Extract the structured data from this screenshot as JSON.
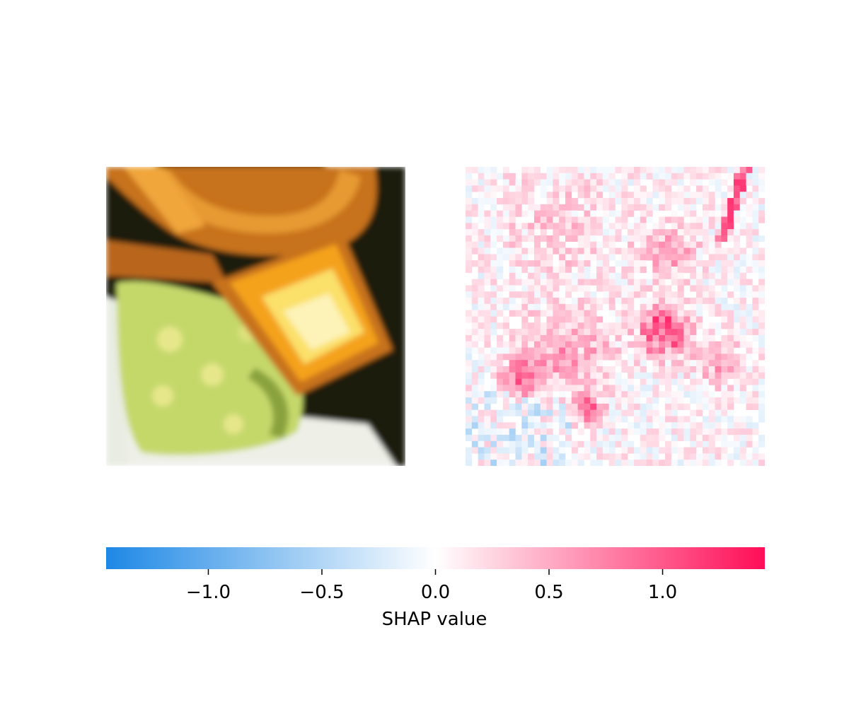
{
  "chart_data": {
    "type": "heatmap",
    "panels": [
      {
        "name": "input-image",
        "description_colors": [
          "#1d1a0c",
          "#c7721c",
          "#f4a21e",
          "#fbe06a",
          "#c4d86a",
          "#eef0e8"
        ]
      },
      {
        "name": "shap-attribution-map"
      }
    ],
    "colorbar": {
      "label": "SHAP value",
      "range": [
        -1.45,
        1.45
      ],
      "ticks": [
        -1.0,
        -0.5,
        0.0,
        0.5,
        1.0
      ],
      "tick_labels": [
        "−1.0",
        "−0.5",
        "0.0",
        "0.5",
        "1.0"
      ],
      "colors": {
        "negative": "#1e88e5",
        "zero": "#ffffff",
        "positive": "#ff0d57"
      }
    }
  }
}
